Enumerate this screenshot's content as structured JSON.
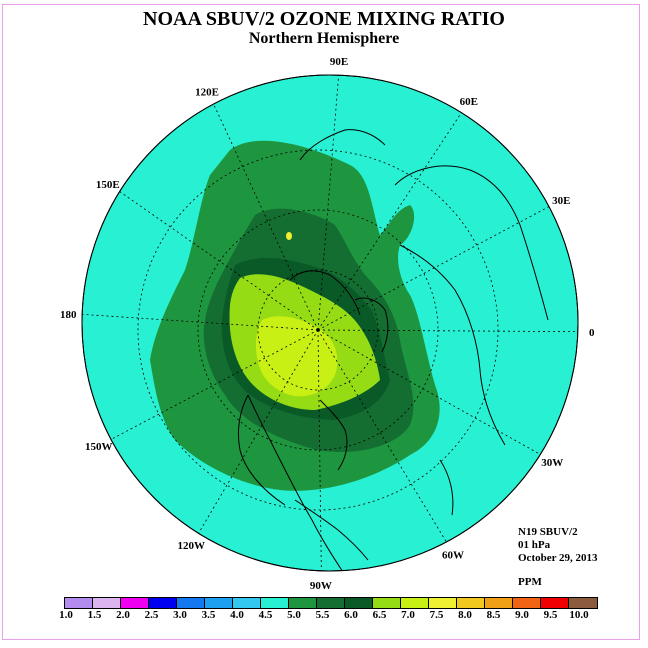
{
  "title": "NOAA SBUV/2 OZONE MIXING RATIO",
  "subtitle": "Northern Hemisphere",
  "info": {
    "satellite": "N19 SBUV/2",
    "level": "01 hPa",
    "date": "October 29, 2013",
    "units": "PPM"
  },
  "longitude_labels": [
    "90E",
    "60E",
    "30E",
    "0",
    "30W",
    "60W",
    "90W",
    "120W",
    "150W",
    "180",
    "150E",
    "120E"
  ],
  "colorbar": {
    "ticks": [
      "1.0",
      "1.5",
      "2.0",
      "2.5",
      "3.0",
      "3.5",
      "4.0",
      "4.5",
      "5.0",
      "5.5",
      "6.0",
      "6.5",
      "7.0",
      "7.5",
      "8.0",
      "8.5",
      "9.0",
      "9.5",
      "10.0"
    ],
    "colors": [
      "#b48cf0",
      "#dcb4f0",
      "#f000f0",
      "#0000f0",
      "#1478f0",
      "#1ea0f0",
      "#32c8f0",
      "#28f0d2",
      "#1e9640",
      "#146e32",
      "#0a5a28",
      "#96dc14",
      "#c8f014",
      "#f0f032",
      "#f0c81e",
      "#f0a014",
      "#f06414",
      "#f00000",
      "#8c5a3c"
    ]
  },
  "map_colors": {
    "background": "#28f0d2",
    "level_5_0": "#1e9640",
    "level_5_5": "#146e32",
    "level_6_0": "#0a5a28",
    "level_6_5": "#96dc14",
    "level_7_0": "#c8f014",
    "level_7_5": "#f0f032",
    "small_blue_patch": "#1478f0"
  }
}
